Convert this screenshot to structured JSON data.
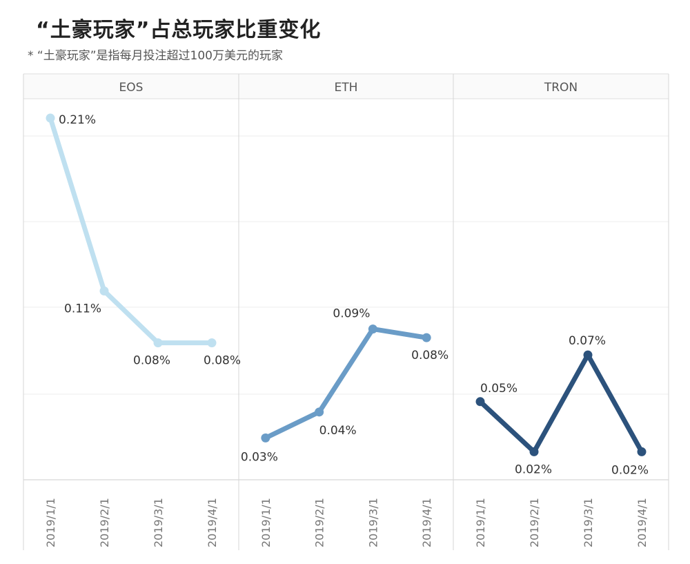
{
  "title": "“土豪玩家”占总玩家比重变化",
  "subtitle": "* “土豪玩家”是指每月投注超过100万美元的玩家",
  "chart_data": {
    "type": "line",
    "categories": [
      "2019/1/1",
      "2019/2/1",
      "2019/3/1",
      "2019/4/1"
    ],
    "ylim": [
      0,
      0.22
    ],
    "grid": true,
    "series": [
      {
        "name": "EOS",
        "values": [
          0.21,
          0.11,
          0.08,
          0.08
        ],
        "labels": [
          "0.21%",
          "0.11%",
          "0.08%",
          "0.08%"
        ],
        "color": "#bfe0f0"
      },
      {
        "name": "ETH",
        "values": [
          0.025,
          0.04,
          0.088,
          0.083
        ],
        "labels": [
          "0.03%",
          "0.04%",
          "0.09%",
          "0.08%"
        ],
        "color": "#6a9cc7"
      },
      {
        "name": "TRON",
        "values": [
          0.046,
          0.017,
          0.073,
          0.017
        ],
        "labels": [
          "0.05%",
          "0.02%",
          "0.07%",
          "0.02%"
        ],
        "color": "#2c527c"
      }
    ]
  }
}
